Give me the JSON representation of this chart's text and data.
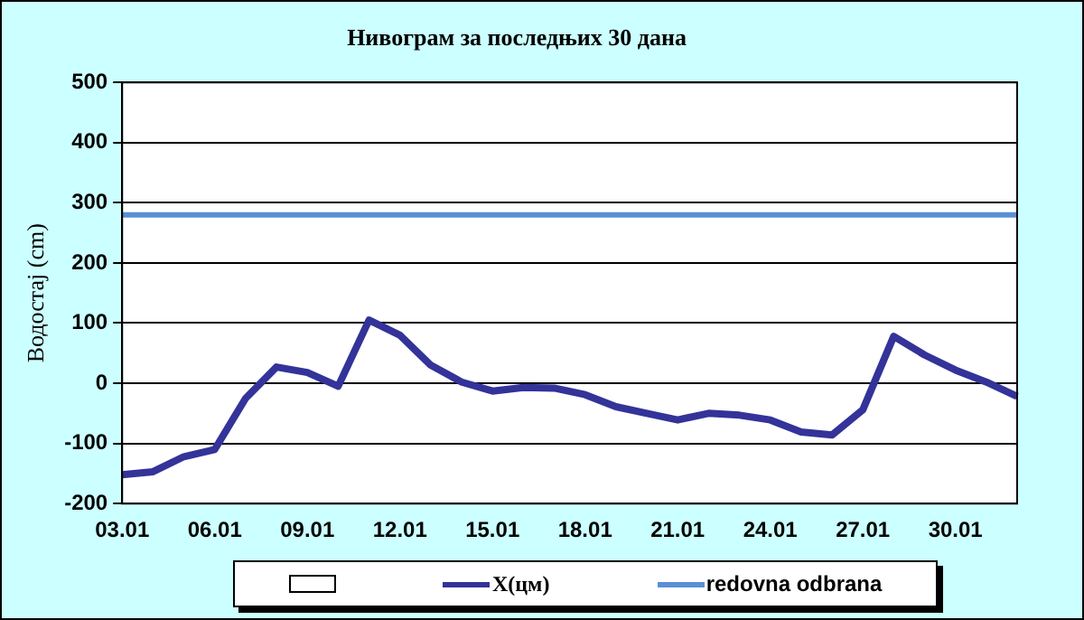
{
  "chart_data": {
    "type": "line",
    "title": "Нивограм за последњих 30 дана",
    "ylabel": "Водостај (cm)",
    "categories": [
      "03.01",
      null,
      null,
      "06.01",
      null,
      null,
      "09.01",
      null,
      null,
      "12.01",
      null,
      null,
      "15.01",
      null,
      null,
      "18.01",
      null,
      null,
      "21.01",
      null,
      null,
      "24.01",
      null,
      null,
      "27.01",
      null,
      null,
      "30.01",
      null,
      null
    ],
    "series": [
      {
        "name": "X(цм)",
        "color": "#333399",
        "values": [
          -152,
          -147,
          -122,
          -110,
          -25,
          27,
          18,
          -5,
          105,
          80,
          30,
          2,
          -13,
          -7,
          -8,
          -19,
          -39,
          -50,
          -61,
          -50,
          -53,
          -61,
          -81,
          -86,
          -44,
          78,
          47,
          22,
          2,
          -22
        ]
      }
    ],
    "ylim": [
      -200,
      500
    ],
    "yticks": [
      -200,
      -100,
      0,
      100,
      200,
      300,
      400,
      500
    ],
    "grid": "y",
    "legend": "bottom",
    "marker": "none",
    "line_style": "solid",
    "ref_lines": [
      {
        "axis": "y",
        "value": 280,
        "label": "redovna odbrana",
        "color": "#5b8fd6"
      }
    ]
  }
}
